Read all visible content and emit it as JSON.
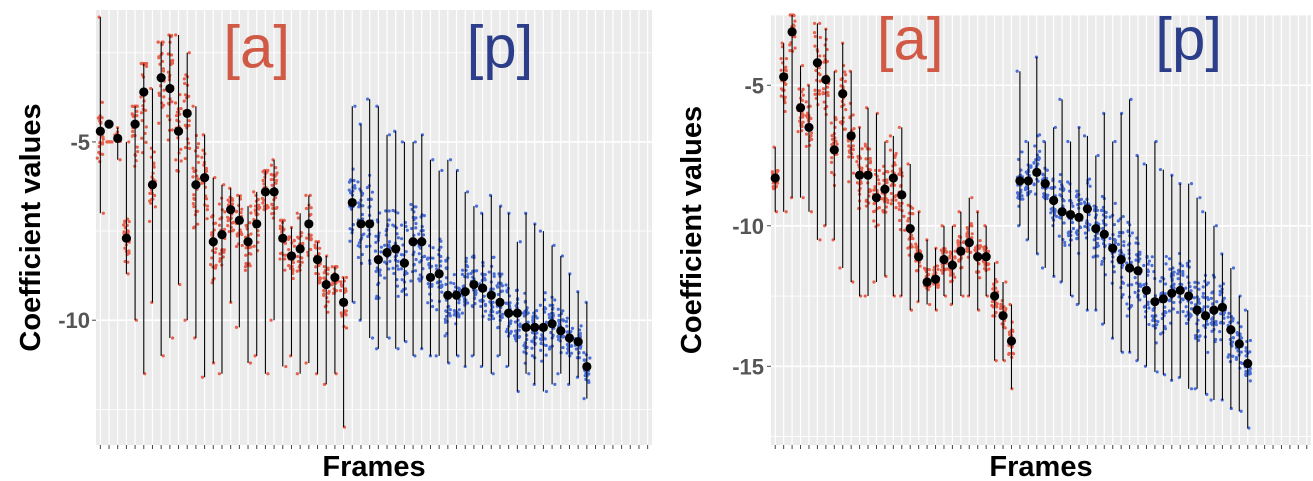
{
  "colors": {
    "panel_bg": "#ebebeb",
    "grid": "#ffffff",
    "a_points": "#e8604c",
    "p_points": "#4a6fd9",
    "mean_point": "#000000",
    "range_line": "#000000",
    "annot_a": "#d05a45",
    "annot_p": "#2c3e8a"
  },
  "chart_data": [
    {
      "type": "scatter",
      "xlabel": "Frames",
      "ylabel": "Coefficient values",
      "yticks": [
        -5,
        -10
      ],
      "ylim": [
        -13.5,
        -1.3
      ],
      "grid": true,
      "annotations": [
        {
          "text": "[a]",
          "color_key": "annot_a",
          "x": 19,
          "y": -2.3
        },
        {
          "text": "[p]",
          "color_key": "annot_p",
          "x": 47,
          "y": -2.3
        }
      ],
      "frames": 64,
      "series": [
        {
          "name": "",
          "color_key": "a_points",
          "frames_start": 1,
          "means": [
            -4.7,
            -4.5,
            -4.9,
            -7.7,
            -4.5,
            -3.6,
            -6.2,
            -3.2,
            -3.5,
            -4.7,
            -4.2,
            -6.2,
            -6.0,
            -7.8,
            -7.6,
            -6.9,
            -7.2,
            -7.8,
            -7.3,
            -6.4,
            -6.4,
            -7.7,
            -8.2,
            -8.0,
            -7.3,
            -8.3,
            -9.0,
            -8.8,
            -9.5
          ],
          "lows": [
            -7.0,
            -5.0,
            -5.5,
            -8.7,
            -10.0,
            -11.5,
            -9.5,
            -11.0,
            -10.5,
            -9.0,
            -10.0,
            -10.5,
            -11.6,
            -11.2,
            -11.5,
            -9.5,
            -10.2,
            -11.2,
            -11.0,
            -11.5,
            -10.0,
            -11.3,
            -11.0,
            -11.5,
            -11.2,
            -11.5,
            -11.8,
            -11.5,
            -13.0
          ],
          "highs": [
            -1.5,
            -5.0,
            -4.6,
            -5.0,
            -4.0,
            -2.8,
            -3.5,
            -2.2,
            -2.0,
            -2.0,
            -2.5,
            -4.0,
            -4.8,
            -6.0,
            -6.2,
            -6.3,
            -6.5,
            -6.8,
            -6.4,
            -5.8,
            -5.5,
            -7.2,
            -7.4,
            -7.0,
            -6.5,
            -7.8,
            -8.2,
            -8.5,
            -8.8
          ]
        },
        {
          "name": "",
          "color_key": "p_points",
          "frames_start": 30,
          "means": [
            -6.7,
            -7.3,
            -7.3,
            -8.3,
            -8.1,
            -8.0,
            -8.4,
            -7.8,
            -7.8,
            -8.8,
            -8.7,
            -9.3,
            -9.3,
            -9.2,
            -9.0,
            -9.1,
            -9.3,
            -9.5,
            -9.8,
            -9.8,
            -10.2,
            -10.2,
            -10.2,
            -10.1,
            -10.3,
            -10.5,
            -10.6,
            -11.3
          ],
          "lows": [
            -9.5,
            -10.0,
            -10.5,
            -10.8,
            -10.5,
            -10.8,
            -10.6,
            -11.0,
            -10.8,
            -11.0,
            -11.0,
            -11.2,
            -11.0,
            -11.3,
            -11.0,
            -11.3,
            -11.5,
            -11.0,
            -11.3,
            -12.0,
            -11.5,
            -11.8,
            -12.0,
            -11.8,
            -11.5,
            -11.8,
            -11.6,
            -12.2
          ],
          "highs": [
            -4.0,
            -4.5,
            -3.8,
            -4.0,
            -4.8,
            -4.7,
            -5.0,
            -5.0,
            -4.8,
            -5.5,
            -5.8,
            -5.5,
            -5.8,
            -6.4,
            -6.8,
            -7.0,
            -6.5,
            -6.8,
            -7.0,
            -7.8,
            -7.0,
            -7.3,
            -7.5,
            -7.9,
            -8.2,
            -8.7,
            -9.2,
            -9.5
          ]
        }
      ]
    },
    {
      "type": "scatter",
      "xlabel": "Frames",
      "ylabel": "Coefficient values",
      "yticks": [
        -5,
        -10,
        -15
      ],
      "ylim": [
        -17.8,
        -2.5
      ],
      "grid": true,
      "annotations": [
        {
          "text": "[a]",
          "color_key": "annot_a",
          "x": 17,
          "y": -3.3
        },
        {
          "text": "[p]",
          "color_key": "annot_p",
          "x": 50,
          "y": -3.3
        }
      ],
      "frames": 64,
      "series": [
        {
          "name": "",
          "color_key": "a_points",
          "frames_start": 1,
          "means": [
            -8.3,
            -4.7,
            -3.1,
            -5.8,
            -6.5,
            -4.2,
            -4.8,
            -7.3,
            -5.3,
            -6.8,
            -8.2,
            -8.2,
            -9.0,
            -8.7,
            -8.3,
            -8.9,
            -10.1,
            -11.1,
            -12.0,
            -11.9,
            -11.2,
            -11.4,
            -10.9,
            -10.6,
            -11.1,
            -11.1,
            -12.5,
            -13.2,
            -14.1
          ],
          "lows": [
            -9.5,
            -9.5,
            -9.0,
            -9.0,
            -9.5,
            -10.5,
            -10.0,
            -10.5,
            -11.5,
            -12.0,
            -12.5,
            -12.5,
            -12.0,
            -11.8,
            -12.5,
            -12.5,
            -13.0,
            -12.7,
            -12.8,
            -13.0,
            -12.5,
            -12.8,
            -12.5,
            -12.5,
            -13.0,
            -12.5,
            -14.8,
            -14.8,
            -15.8
          ],
          "highs": [
            -7.2,
            -3.5,
            -2.5,
            -4.3,
            -5.0,
            -2.8,
            -3.0,
            -4.5,
            -3.5,
            -4.5,
            -6.5,
            -5.8,
            -6.0,
            -7.0,
            -6.8,
            -6.5,
            -7.8,
            -9.5,
            -10.5,
            -10.8,
            -10.0,
            -10.0,
            -9.5,
            -9.0,
            -9.5,
            -10.0,
            -11.3,
            -12.0,
            -12.8
          ]
        },
        {
          "name": "",
          "color_key": "p_points",
          "frames_start": 30,
          "means": [
            -8.4,
            -8.4,
            -8.1,
            -8.5,
            -9.1,
            -9.5,
            -9.6,
            -9.7,
            -9.4,
            -10.1,
            -10.3,
            -10.8,
            -11.2,
            -11.5,
            -11.6,
            -12.3,
            -12.7,
            -12.6,
            -12.4,
            -12.3,
            -12.5,
            -13.0,
            -13.2,
            -13.0,
            -12.9,
            -13.7,
            -14.2,
            -14.9
          ],
          "lows": [
            -10.0,
            -10.5,
            -11.0,
            -11.5,
            -11.8,
            -12.0,
            -12.5,
            -12.8,
            -13.0,
            -13.0,
            -13.5,
            -14.0,
            -14.5,
            -14.5,
            -14.8,
            -15.0,
            -15.2,
            -15.3,
            -15.5,
            -15.4,
            -15.8,
            -15.8,
            -16.0,
            -16.2,
            -16.2,
            -16.5,
            -16.6,
            -17.2
          ],
          "highs": [
            -4.5,
            -7.0,
            -4.0,
            -7.0,
            -6.5,
            -5.5,
            -7.0,
            -6.5,
            -6.8,
            -7.5,
            -6.0,
            -7.0,
            -6.0,
            -5.5,
            -7.5,
            -7.8,
            -7.0,
            -8.0,
            -8.2,
            -8.5,
            -8.5,
            -9.0,
            -9.5,
            -10.0,
            -11.0,
            -11.5,
            -12.5,
            -13.0
          ]
        }
      ]
    }
  ]
}
